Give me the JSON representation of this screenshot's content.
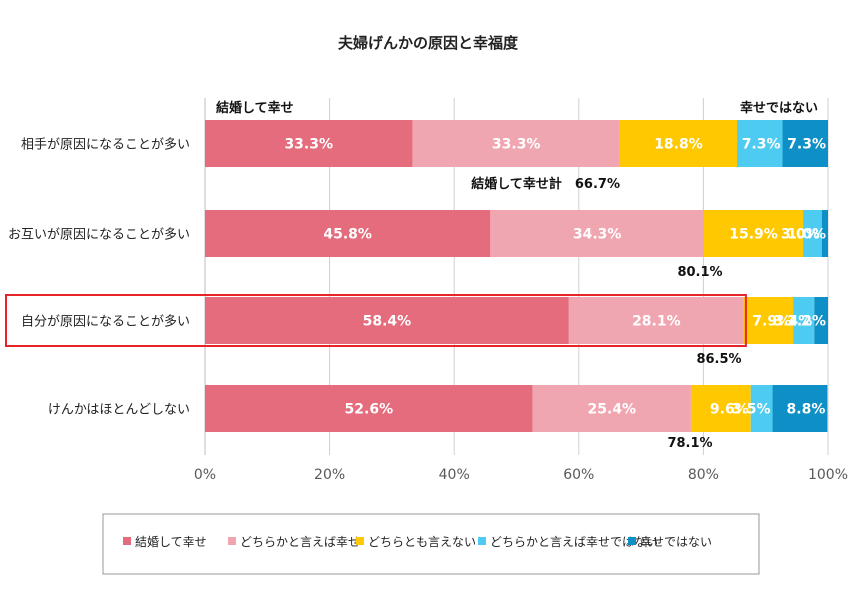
{
  "chart_data": {
    "type": "bar",
    "orientation": "horizontal",
    "stacked": true,
    "title": "夫婦げんかの原因と幸福度",
    "categories": [
      "相手が原因になることが多い",
      "お互いが原因になることが多い",
      "自分が原因になることが多い",
      "けんかはほとんどしない"
    ],
    "series": [
      {
        "name": "結婚して幸せ",
        "color": "#E46C7D",
        "values": [
          33.3,
          45.8,
          58.4,
          52.6
        ],
        "labels": [
          "33.3%",
          "45.8%",
          "58.4%",
          "52.6%"
        ]
      },
      {
        "name": "どちらかと言えば幸せ",
        "color": "#F0A6B0",
        "values": [
          33.3,
          34.3,
          28.1,
          25.4
        ],
        "labels": [
          "33.3%",
          "34.3%",
          "28.1%",
          "25.4%"
        ]
      },
      {
        "name": "どちらとも言えない",
        "color": "#FFC800",
        "values": [
          18.8,
          15.9,
          7.9,
          9.6
        ],
        "labels": [
          "18.8%",
          "15.9%",
          "7.9%",
          "9.6%"
        ]
      },
      {
        "name": "どちらかと言えば幸せではない",
        "color": "#4DCBF0",
        "values": [
          7.3,
          3.0,
          3.4,
          3.5
        ],
        "labels": [
          "7.3%",
          "3.0%",
          "3.4%",
          "3.5%"
        ]
      },
      {
        "name": "幸せではない",
        "color": "#0E8FC6",
        "values": [
          7.3,
          1.0,
          2.2,
          8.8
        ],
        "labels": [
          "7.3%",
          "1.0%",
          "2.2%",
          "8.8%"
        ]
      }
    ],
    "xlim": [
      0,
      100
    ],
    "xticks": [
      "0%",
      "20%",
      "40%",
      "60%",
      "80%",
      "100%"
    ],
    "grid": true,
    "legend_position": "bottom",
    "top_labels": {
      "left": "結婚して幸せ",
      "right": "幸せではない"
    },
    "subtotal_label": "結婚して幸せ計",
    "subtotals": [
      "66.7%",
      "80.1%",
      "86.5%",
      "78.1%"
    ],
    "highlighted_category": "自分が原因になることが多い",
    "highlight_color": "#E8242B"
  }
}
